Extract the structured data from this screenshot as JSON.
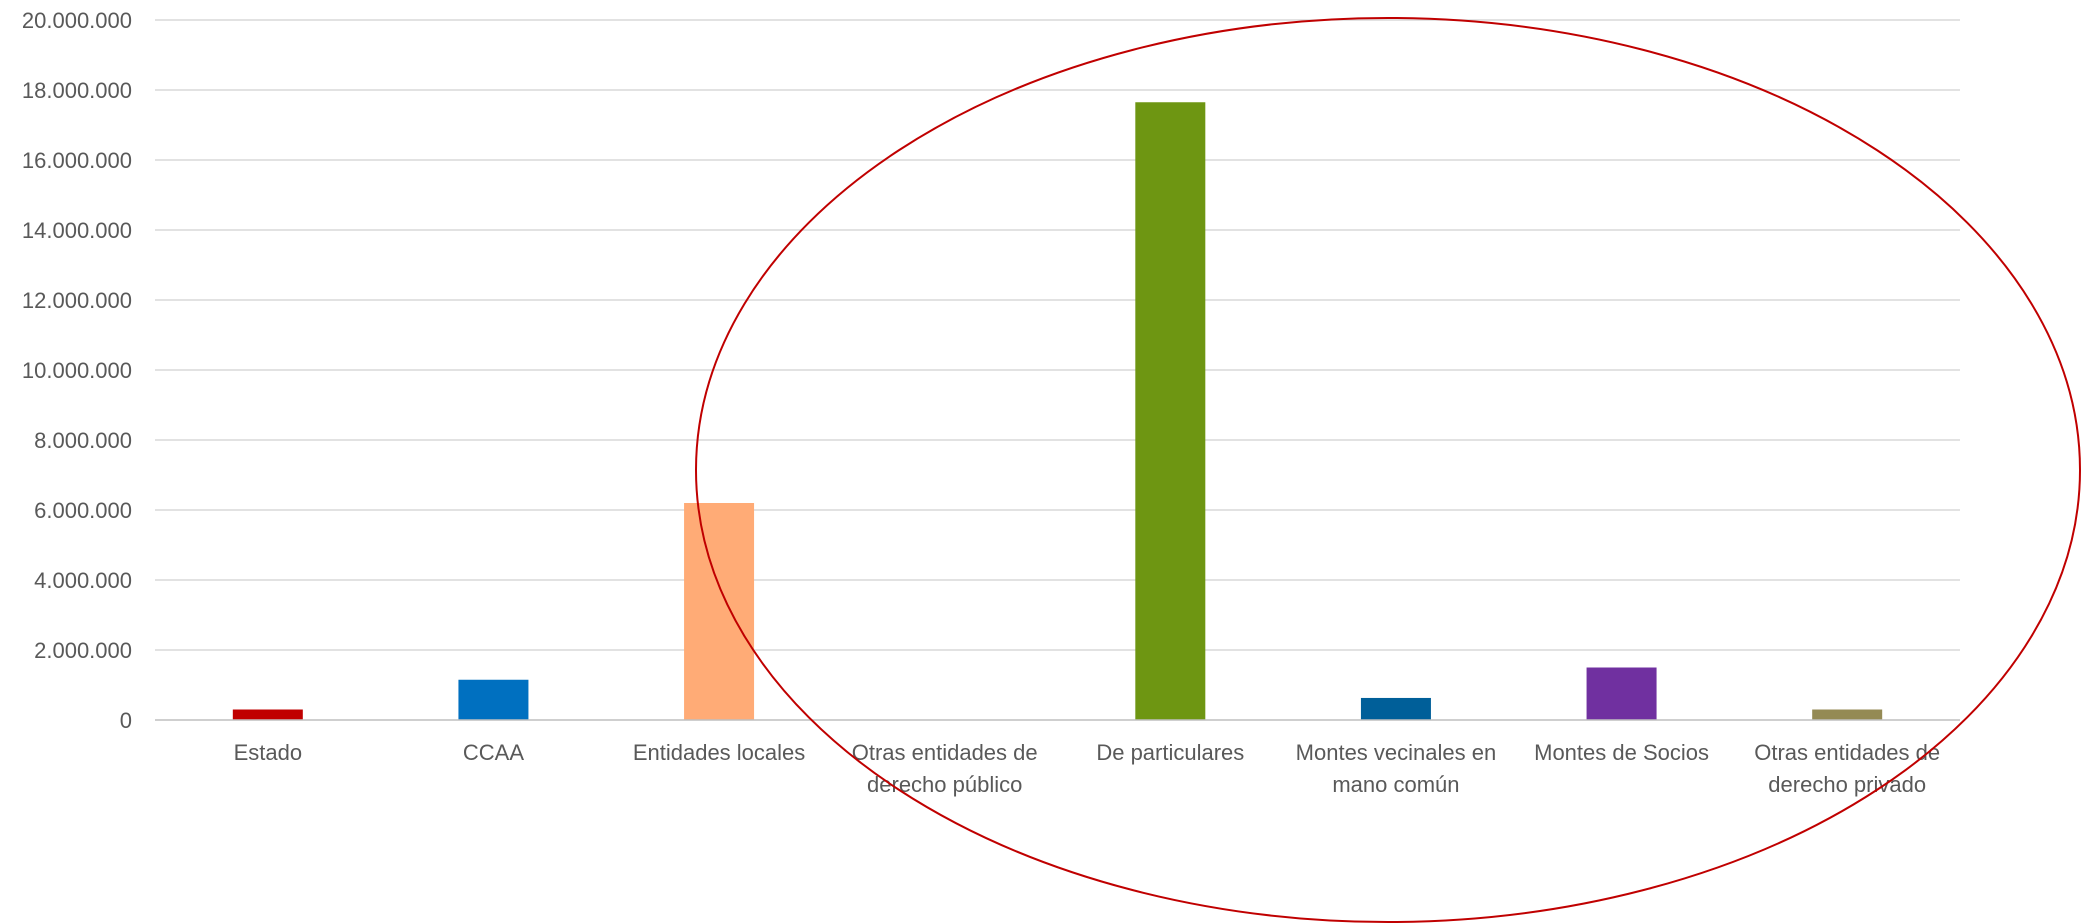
{
  "chart_data": {
    "type": "bar",
    "title": "",
    "xlabel": "",
    "ylabel": "",
    "ylim": [
      0,
      20000000
    ],
    "ytick_step": 2000000,
    "ytick_labels": [
      "0",
      "2.000.000",
      "4.000.000",
      "6.000.000",
      "8.000.000",
      "10.000.000",
      "12.000.000",
      "14.000.000",
      "16.000.000",
      "18.000.000",
      "20.000.000"
    ],
    "grid": true,
    "legend": "none",
    "categories": [
      [
        "Estado"
      ],
      [
        "CCAA"
      ],
      [
        "Entidades locales"
      ],
      [
        "Otras entidades de",
        "derecho público"
      ],
      [
        "De particulares"
      ],
      [
        "Montes vecinales en",
        "mano común"
      ],
      [
        "Montes de Socios"
      ],
      [
        "Otras entidades de",
        "derecho privado"
      ]
    ],
    "values": [
      300000,
      1150000,
      6200000,
      0,
      17650000,
      630000,
      1500000,
      300000
    ],
    "colors": [
      "#C00000",
      "#0070C0",
      "#FFAB76",
      "#BFBFBF",
      "#6E9612",
      "#005F99",
      "#7030A0",
      "#948A54"
    ],
    "annotation": {
      "shape": "ellipse",
      "color": "#C00000"
    }
  }
}
